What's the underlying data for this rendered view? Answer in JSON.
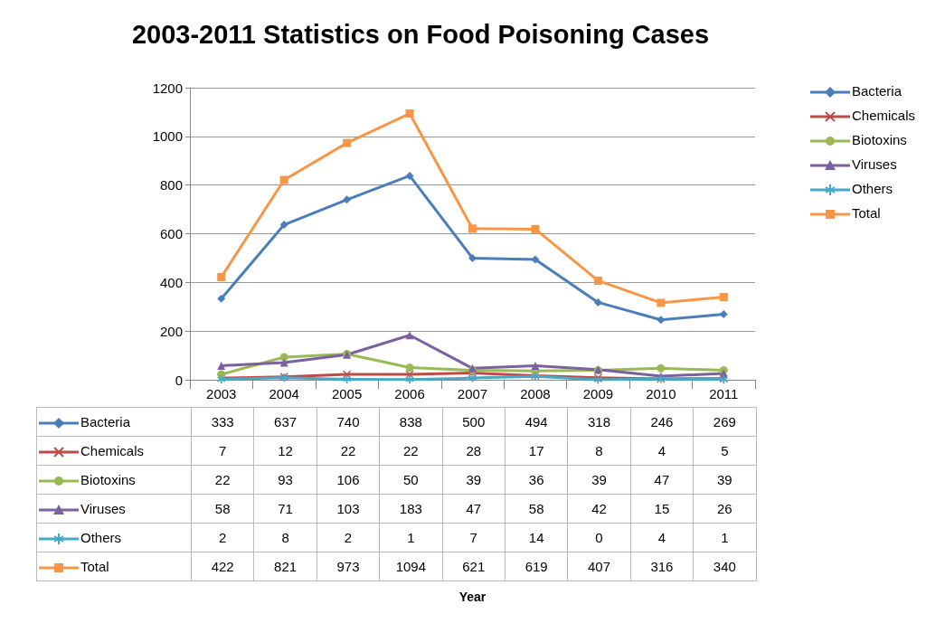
{
  "chart_data": {
    "type": "line",
    "title": "2003-2011 Statistics on Food Poisoning Cases",
    "annotations": [
      "Year"
    ],
    "categories": [
      "2003",
      "2004",
      "2005",
      "2006",
      "2007",
      "2008",
      "2009",
      "2010",
      "2011"
    ],
    "series": [
      {
        "name": "Bacteria",
        "color": "#4a7ebb",
        "marker": "diamond",
        "values": [
          333,
          637,
          740,
          838,
          500,
          494,
          318,
          246,
          269
        ]
      },
      {
        "name": "Chemicals",
        "color": "#be4b48",
        "marker": "cross",
        "values": [
          7,
          12,
          22,
          22,
          28,
          17,
          8,
          4,
          5
        ]
      },
      {
        "name": "Biotoxins",
        "color": "#98b954",
        "marker": "circle",
        "values": [
          22,
          93,
          106,
          50,
          39,
          36,
          39,
          47,
          39
        ]
      },
      {
        "name": "Viruses",
        "color": "#7d60a0",
        "marker": "triangle",
        "values": [
          58,
          71,
          103,
          183,
          47,
          58,
          42,
          15,
          26
        ]
      },
      {
        "name": "Others",
        "color": "#46aac5",
        "marker": "star",
        "values": [
          2,
          8,
          2,
          1,
          7,
          14,
          0,
          4,
          1
        ]
      },
      {
        "name": "Total",
        "color": "#f79646",
        "marker": "square",
        "values": [
          422,
          821,
          973,
          1094,
          621,
          619,
          407,
          316,
          340
        ]
      }
    ],
    "ylim": [
      0,
      1200
    ],
    "yticks": [
      0,
      200,
      400,
      600,
      800,
      {
        "value": 1000,
        "label": "1000"
      },
      {
        "value": 1200,
        "label": "1200"
      }
    ],
    "grid": "y",
    "legend": "right",
    "line_style": "solid",
    "data_labels": true
  }
}
